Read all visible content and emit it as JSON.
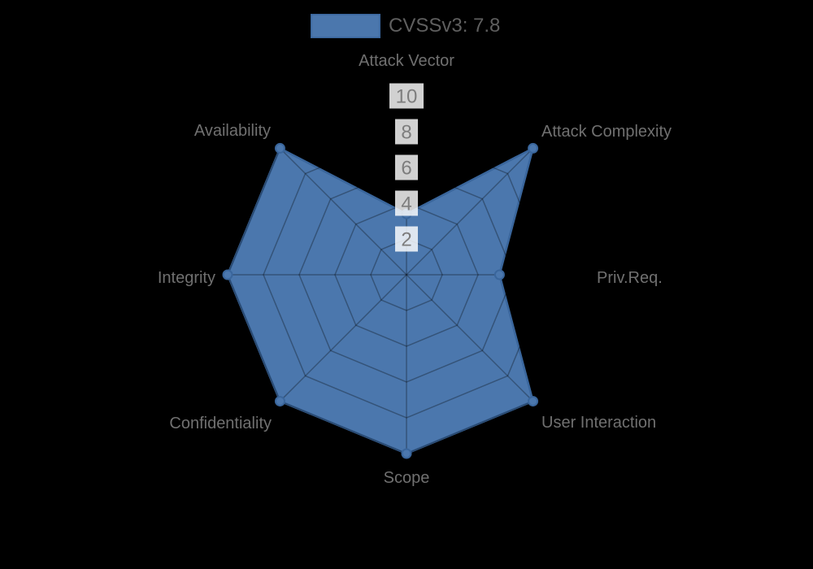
{
  "page": {
    "background": "#000000"
  },
  "legend": {
    "position": "top",
    "items": [
      {
        "label": "CVSSv3: 7.8",
        "swatch_color": "#4b77ad",
        "swatch_border": "#3a669c"
      }
    ]
  },
  "chart_data": {
    "type": "radar",
    "title": "CVSSv3: 7.8",
    "categories": [
      "Attack Vector",
      "Attack Complexity",
      "Priv.Req.",
      "User Interaction",
      "Scope",
      "Confidentiality",
      "Integrity",
      "Availability"
    ],
    "series": [
      {
        "name": "CVSSv3: 7.8",
        "values": [
          3.4,
          10,
          5.2,
          10,
          10,
          10,
          10,
          10
        ],
        "fill_color": "#4b77ad",
        "border_color": "#3a669c",
        "point_radius": 5.5
      }
    ],
    "rlim": [
      0,
      10
    ],
    "tick_values": [
      2,
      4,
      6,
      8,
      10
    ],
    "tick_label_color": "#7d7d7d",
    "tick_backdrop_color": "rgba(255,255,255,0.82)",
    "grid": true,
    "grid_rings": 5,
    "grid_color": "rgba(0,0,0,0.3)",
    "axis_label_color": "#707070",
    "axis_start": "top",
    "direction": "clockwise",
    "legend_position": "top"
  }
}
